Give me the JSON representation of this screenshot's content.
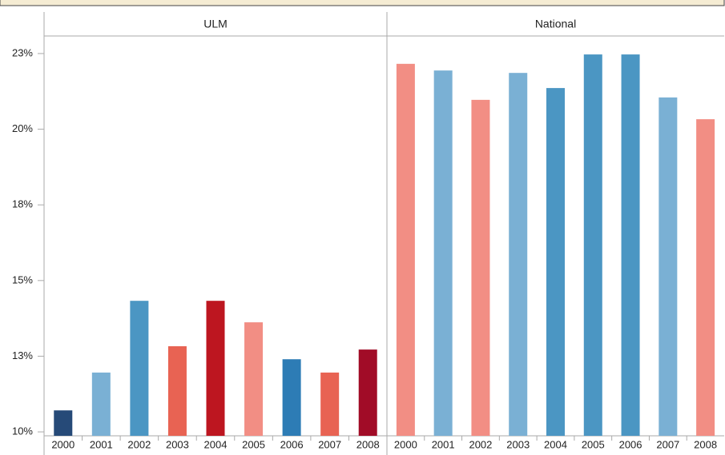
{
  "chart_data": [
    {
      "type": "bar",
      "title": "ULM",
      "categories": [
        "2000",
        "2001",
        "2002",
        "2003",
        "2004",
        "2005",
        "2006",
        "2007",
        "2008"
      ],
      "values": [
        10.71,
        11.96,
        14.33,
        12.83,
        14.33,
        13.62,
        12.4,
        11.96,
        12.72
      ],
      "colors": [
        "#264a78",
        "#7ab0d4",
        "#4b96c3",
        "#e86353",
        "#bd1620",
        "#f28e84",
        "#2d7cb5",
        "#e86353",
        "#a10c27"
      ],
      "ylim": [
        9.87,
        23.08
      ],
      "yticks": [
        {
          "value": 10,
          "label": "10%"
        },
        {
          "value": 12.5,
          "label": "13%"
        },
        {
          "value": 15,
          "label": "15%"
        },
        {
          "value": 17.5,
          "label": "18%"
        },
        {
          "value": 20,
          "label": "20%"
        },
        {
          "value": 22.5,
          "label": "23%"
        }
      ]
    },
    {
      "type": "bar",
      "title": "National",
      "categories": [
        "2000",
        "2001",
        "2002",
        "2003",
        "2004",
        "2005",
        "2006",
        "2007",
        "2008"
      ],
      "values": [
        22.16,
        21.94,
        20.97,
        21.86,
        21.36,
        22.47,
        22.47,
        21.05,
        20.33
      ],
      "colors": [
        "#f28e84",
        "#7ab0d4",
        "#f28e84",
        "#7ab0d4",
        "#4b96c3",
        "#4b96c3",
        "#4b96c3",
        "#7ab0d4",
        "#f28e84"
      ],
      "ylim": [
        9.87,
        23.08
      ]
    }
  ]
}
